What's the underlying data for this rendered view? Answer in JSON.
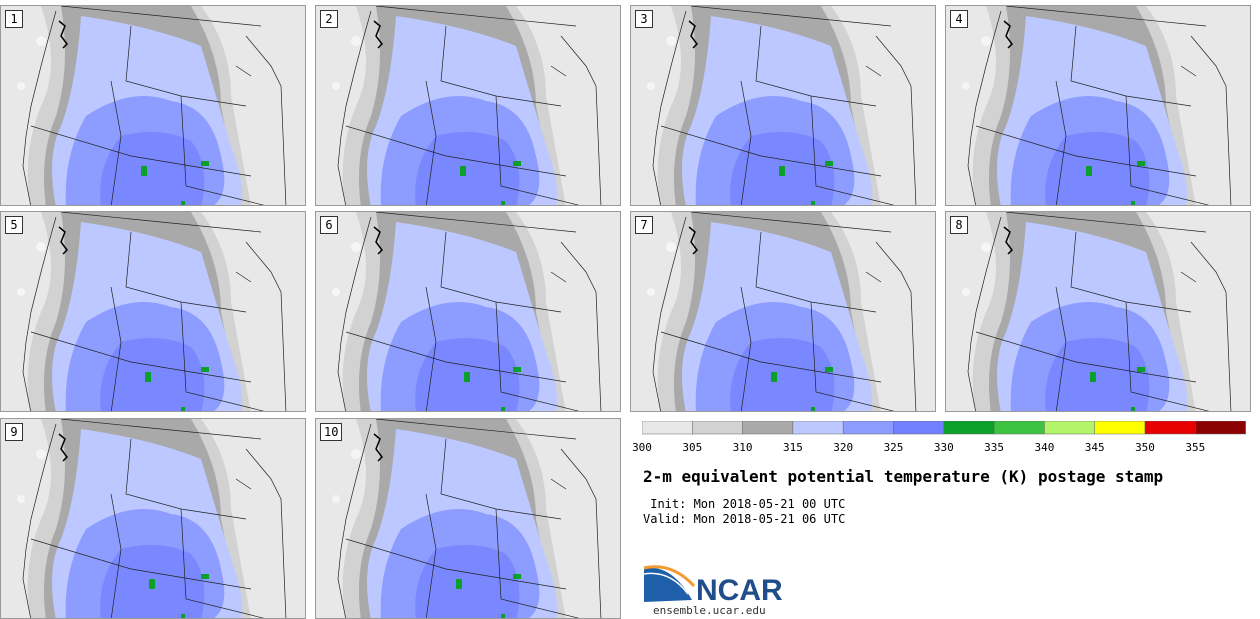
{
  "panels": [
    {
      "label": "1"
    },
    {
      "label": "2"
    },
    {
      "label": "3"
    },
    {
      "label": "4"
    },
    {
      "label": "5"
    },
    {
      "label": "6"
    },
    {
      "label": "7"
    },
    {
      "label": "8"
    },
    {
      "label": "9"
    },
    {
      "label": "10"
    }
  ],
  "colorbar": {
    "ticks": [
      "300",
      "305",
      "310",
      "315",
      "320",
      "325",
      "330",
      "335",
      "340",
      "345",
      "350",
      "355"
    ],
    "colors": [
      "#e8e8e8",
      "#d2d2d2",
      "#a9a9a9",
      "#bcc8ff",
      "#8c9cff",
      "#7080ff",
      "#0aa02a",
      "#3cc440",
      "#b4f46a",
      "#ffff00",
      "#e60000",
      "#8b0000"
    ]
  },
  "title": "2-m equivalent potential temperature (K) postage stamp",
  "init_text": " Init: Mon 2018-05-21 00 UTC",
  "valid_text": "Valid: Mon 2018-05-21 06 UTC",
  "logo": {
    "text": "NCAR",
    "url": "ensemble.ucar.edu",
    "colors": {
      "blue": "#1f5ea8",
      "orange": "#f29a33"
    }
  }
}
